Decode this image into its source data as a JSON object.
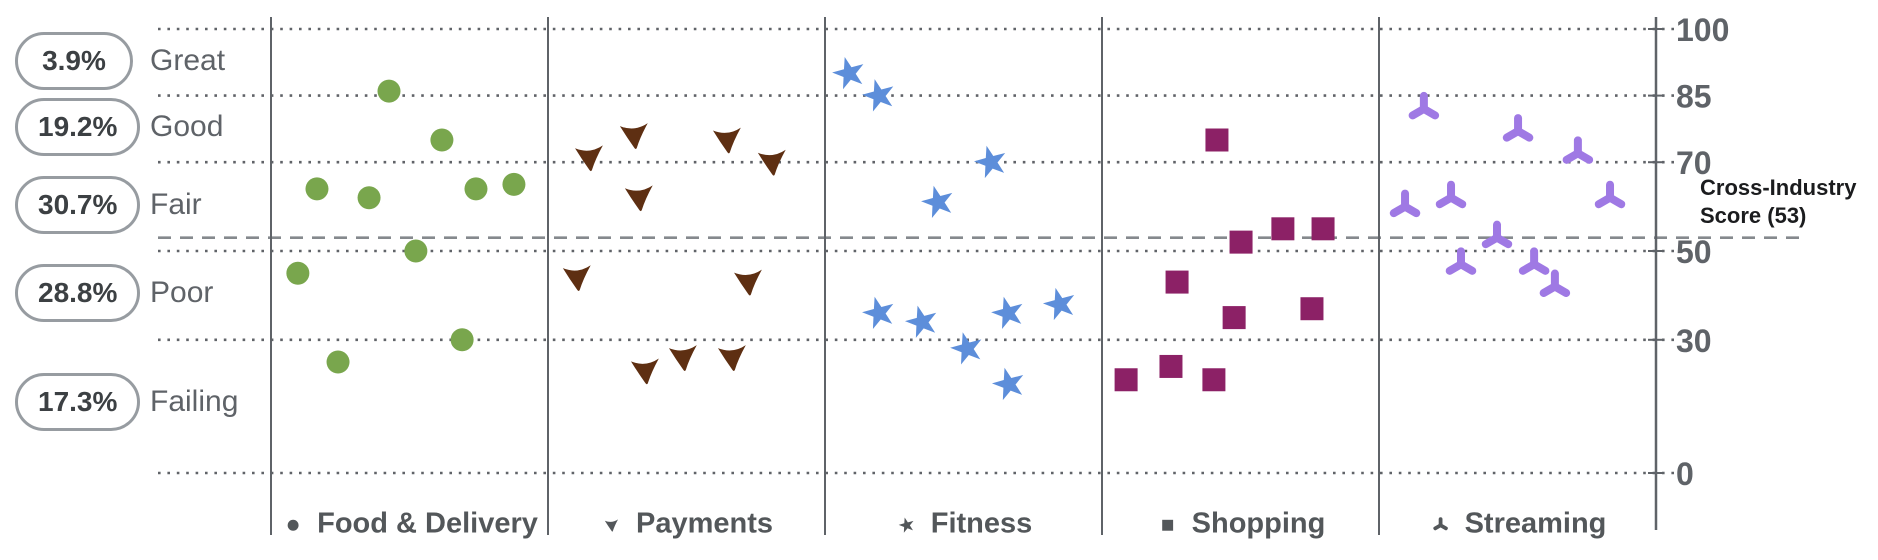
{
  "chart_data": {
    "type": "scatter",
    "title": "",
    "y_axis": {
      "ticks": [
        100,
        85,
        70,
        50,
        30,
        0
      ],
      "range": [
        0,
        100
      ]
    },
    "reference_line": {
      "label": "Cross-Industry Score (53)",
      "value": 53
    },
    "bands": [
      {
        "share": "3.9%",
        "label": "Great",
        "range": [
          85,
          100
        ]
      },
      {
        "share": "19.2%",
        "label": "Good",
        "range": [
          70,
          85
        ]
      },
      {
        "share": "30.7%",
        "label": "Fair",
        "range": [
          50,
          70
        ]
      },
      {
        "share": "28.8%",
        "label": "Poor",
        "range": [
          30,
          50
        ]
      },
      {
        "share": "17.3%",
        "label": "Failing",
        "range": [
          0,
          30
        ]
      }
    ],
    "categories": [
      {
        "label": "Food & Delivery",
        "marker": "circle",
        "color": "#79A64D",
        "points": [
          {
            "x": 0.426,
            "v": 86
          },
          {
            "x": 0.617,
            "v": 75
          },
          {
            "x": 0.166,
            "v": 64
          },
          {
            "x": 0.354,
            "v": 62
          },
          {
            "x": 0.74,
            "v": 64
          },
          {
            "x": 0.877,
            "v": 65
          },
          {
            "x": 0.523,
            "v": 50
          },
          {
            "x": 0.097,
            "v": 45
          },
          {
            "x": 0.69,
            "v": 30
          },
          {
            "x": 0.242,
            "v": 25
          }
        ]
      },
      {
        "label": "Payments",
        "marker": "triangle-down",
        "color": "#5E2F12",
        "points": [
          {
            "x": 0.314,
            "v": 76
          },
          {
            "x": 0.65,
            "v": 75
          },
          {
            "x": 0.152,
            "v": 71
          },
          {
            "x": 0.812,
            "v": 70
          },
          {
            "x": 0.332,
            "v": 62
          },
          {
            "x": 0.108,
            "v": 44
          },
          {
            "x": 0.726,
            "v": 43
          },
          {
            "x": 0.491,
            "v": 26
          },
          {
            "x": 0.668,
            "v": 26
          },
          {
            "x": 0.354,
            "v": 23
          }
        ]
      },
      {
        "label": "Fitness",
        "marker": "star",
        "color": "#5D8EDA",
        "points": [
          {
            "x": 0.087,
            "v": 90
          },
          {
            "x": 0.195,
            "v": 85
          },
          {
            "x": 0.599,
            "v": 70
          },
          {
            "x": 0.408,
            "v": 61
          },
          {
            "x": 0.848,
            "v": 38
          },
          {
            "x": 0.661,
            "v": 36
          },
          {
            "x": 0.195,
            "v": 36
          },
          {
            "x": 0.35,
            "v": 34
          },
          {
            "x": 0.513,
            "v": 28
          },
          {
            "x": 0.664,
            "v": 20
          }
        ]
      },
      {
        "label": "Shopping",
        "marker": "square",
        "color": "#8C2166",
        "points": [
          {
            "x": 0.415,
            "v": 75
          },
          {
            "x": 0.653,
            "v": 55
          },
          {
            "x": 0.798,
            "v": 55
          },
          {
            "x": 0.502,
            "v": 52
          },
          {
            "x": 0.271,
            "v": 43
          },
          {
            "x": 0.758,
            "v": 37
          },
          {
            "x": 0.477,
            "v": 35
          },
          {
            "x": 0.249,
            "v": 24
          },
          {
            "x": 0.087,
            "v": 21
          },
          {
            "x": 0.404,
            "v": 21
          }
        ]
      },
      {
        "label": "Streaming",
        "marker": "tri-arm",
        "color": "#9F79E4",
        "points": [
          {
            "x": 0.162,
            "v": 82
          },
          {
            "x": 0.502,
            "v": 77
          },
          {
            "x": 0.718,
            "v": 72
          },
          {
            "x": 0.834,
            "v": 62
          },
          {
            "x": 0.26,
            "v": 62
          },
          {
            "x": 0.094,
            "v": 60
          },
          {
            "x": 0.426,
            "v": 53
          },
          {
            "x": 0.296,
            "v": 47
          },
          {
            "x": 0.56,
            "v": 47
          },
          {
            "x": 0.635,
            "v": 42
          }
        ]
      }
    ],
    "layout": {
      "grid": "dotted horizontal band lines",
      "legend_position": "bottom",
      "value_axis_side": "right"
    }
  }
}
